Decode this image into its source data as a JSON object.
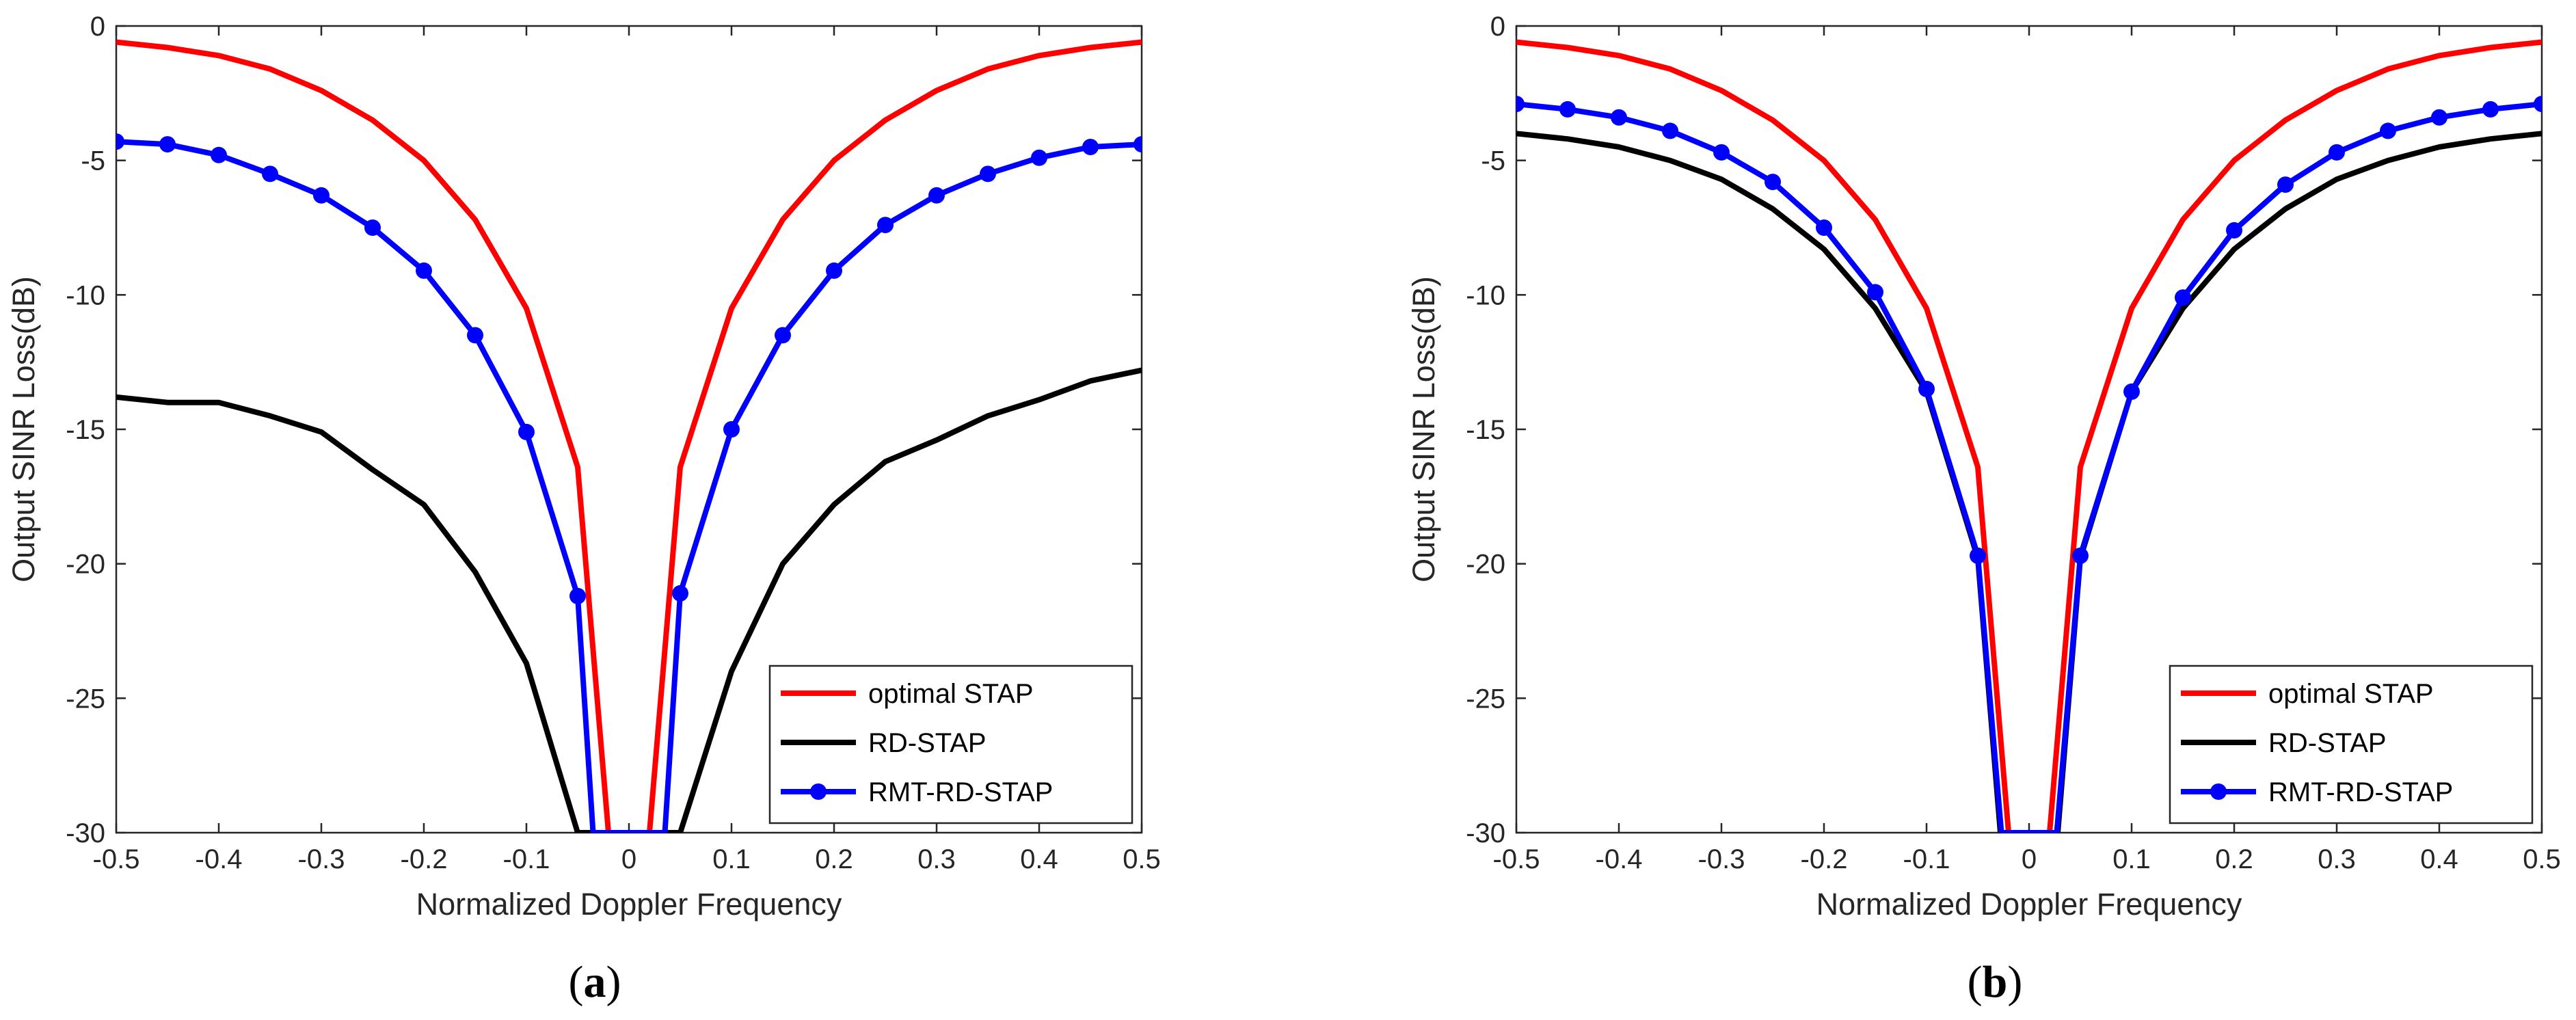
{
  "chart_data": [
    {
      "type": "line",
      "panel_label": "a",
      "xlabel": "Normalized Doppler Frequency",
      "ylabel": "Output SINR Loss(dB)",
      "xlim": [
        -0.5,
        0.5
      ],
      "ylim": [
        -30,
        0
      ],
      "xticks": [
        "-0.5",
        "-0.4",
        "-0.3",
        "-0.2",
        "-0.1",
        "0",
        "0.1",
        "0.2",
        "0.3",
        "0.4",
        "0.5"
      ],
      "yticks": [
        "0",
        "-5",
        "-10",
        "-15",
        "-20",
        "-25",
        "-30"
      ],
      "grid": false,
      "legend_position": "bottom-right",
      "series": [
        {
          "name": "optimal STAP",
          "color": "#ff0000",
          "marker": "none",
          "x": [
            -0.5,
            -0.45,
            -0.4,
            -0.35,
            -0.3,
            -0.25,
            -0.2,
            -0.15,
            -0.1,
            -0.05,
            -0.02,
            0.02,
            0.05,
            0.1,
            0.15,
            0.2,
            0.25,
            0.3,
            0.35,
            0.4,
            0.45,
            0.5
          ],
          "y": [
            -0.6,
            -0.8,
            -1.1,
            -1.6,
            -2.4,
            -3.5,
            -5.0,
            -7.2,
            -10.5,
            -16.4,
            -30.0,
            -30.0,
            -16.4,
            -10.5,
            -7.2,
            -5.0,
            -3.5,
            -2.4,
            -1.6,
            -1.1,
            -0.8,
            -0.6
          ]
        },
        {
          "name": "RD-STAP",
          "color": "#000000",
          "marker": "none",
          "x": [
            -0.5,
            -0.45,
            -0.4,
            -0.35,
            -0.3,
            -0.25,
            -0.2,
            -0.15,
            -0.1,
            -0.05,
            0.05,
            0.1,
            0.15,
            0.2,
            0.25,
            0.3,
            0.35,
            0.4,
            0.45,
            0.5
          ],
          "y": [
            -13.8,
            -14.0,
            -14.0,
            -14.5,
            -15.1,
            -16.5,
            -17.8,
            -20.3,
            -23.7,
            -30.0,
            -30.0,
            -24.0,
            -20.0,
            -17.8,
            -16.2,
            -15.4,
            -14.5,
            -13.9,
            -13.2,
            -12.8
          ]
        },
        {
          "name": "RMT-RD-STAP",
          "color": "#0000ff",
          "marker": "circle",
          "x": [
            -0.5,
            -0.45,
            -0.4,
            -0.35,
            -0.3,
            -0.25,
            -0.2,
            -0.15,
            -0.1,
            -0.05,
            -0.035,
            0.035,
            0.05,
            0.1,
            0.15,
            0.2,
            0.25,
            0.3,
            0.35,
            0.4,
            0.45,
            0.5
          ],
          "y": [
            -4.3,
            -4.4,
            -4.8,
            -5.5,
            -6.3,
            -7.5,
            -9.1,
            -11.5,
            -15.1,
            -21.2,
            -30.0,
            -30.0,
            -21.1,
            -15.0,
            -11.5,
            -9.1,
            -7.4,
            -6.3,
            -5.5,
            -4.9,
            -4.5,
            -4.4
          ],
          "marker_x": [
            -0.5,
            -0.45,
            -0.4,
            -0.35,
            -0.3,
            -0.25,
            -0.2,
            -0.15,
            -0.1,
            -0.05,
            0.05,
            0.1,
            0.15,
            0.2,
            0.25,
            0.3,
            0.35,
            0.4,
            0.45,
            0.5
          ],
          "marker_y": [
            -4.3,
            -4.4,
            -4.8,
            -5.5,
            -6.3,
            -7.5,
            -9.1,
            -11.5,
            -15.1,
            -21.2,
            -21.1,
            -15.0,
            -11.5,
            -9.1,
            -7.4,
            -6.3,
            -5.5,
            -4.9,
            -4.5,
            -4.4
          ]
        }
      ]
    },
    {
      "type": "line",
      "panel_label": "b",
      "xlabel": "Normalized Doppler Frequency",
      "ylabel": "Output SINR Loss(dB)",
      "xlim": [
        -0.5,
        0.5
      ],
      "ylim": [
        -30,
        0
      ],
      "xticks": [
        "-0.5",
        "-0.4",
        "-0.3",
        "-0.2",
        "-0.1",
        "0",
        "0.1",
        "0.2",
        "0.3",
        "0.4",
        "0.5"
      ],
      "yticks": [
        "0",
        "-5",
        "-10",
        "-15",
        "-20",
        "-25",
        "-30"
      ],
      "grid": false,
      "legend_position": "bottom-right",
      "series": [
        {
          "name": "optimal STAP",
          "color": "#ff0000",
          "marker": "none",
          "x": [
            -0.5,
            -0.45,
            -0.4,
            -0.35,
            -0.3,
            -0.25,
            -0.2,
            -0.15,
            -0.1,
            -0.05,
            -0.02,
            0.02,
            0.05,
            0.1,
            0.15,
            0.2,
            0.25,
            0.3,
            0.35,
            0.4,
            0.45,
            0.5
          ],
          "y": [
            -0.6,
            -0.8,
            -1.1,
            -1.6,
            -2.4,
            -3.5,
            -5.0,
            -7.2,
            -10.5,
            -16.4,
            -30.0,
            -30.0,
            -16.4,
            -10.5,
            -7.2,
            -5.0,
            -3.5,
            -2.4,
            -1.6,
            -1.1,
            -0.8,
            -0.6
          ]
        },
        {
          "name": "RD-STAP",
          "color": "#000000",
          "marker": "none",
          "x": [
            -0.5,
            -0.45,
            -0.4,
            -0.35,
            -0.3,
            -0.25,
            -0.2,
            -0.15,
            -0.1,
            -0.05,
            -0.028,
            0.028,
            0.05,
            0.1,
            0.15,
            0.2,
            0.25,
            0.3,
            0.35,
            0.4,
            0.45,
            0.5
          ],
          "y": [
            -4.0,
            -4.2,
            -4.5,
            -5.0,
            -5.7,
            -6.8,
            -8.3,
            -10.5,
            -13.6,
            -19.8,
            -30.0,
            -30.0,
            -19.8,
            -13.6,
            -10.5,
            -8.3,
            -6.8,
            -5.7,
            -5.0,
            -4.5,
            -4.2,
            -4.0
          ]
        },
        {
          "name": "RMT-RD-STAP",
          "color": "#0000ff",
          "marker": "circle",
          "x": [
            -0.5,
            -0.45,
            -0.4,
            -0.35,
            -0.3,
            -0.25,
            -0.2,
            -0.15,
            -0.1,
            -0.05,
            -0.027,
            0.027,
            0.05,
            0.1,
            0.15,
            0.2,
            0.25,
            0.3,
            0.35,
            0.4,
            0.45,
            0.5
          ],
          "y": [
            -2.9,
            -3.1,
            -3.4,
            -3.9,
            -4.7,
            -5.8,
            -7.5,
            -9.9,
            -13.5,
            -19.7,
            -30.0,
            -30.0,
            -19.7,
            -13.6,
            -10.1,
            -7.6,
            -5.9,
            -4.7,
            -3.9,
            -3.4,
            -3.1,
            -2.9
          ],
          "marker_x": [
            -0.5,
            -0.45,
            -0.4,
            -0.35,
            -0.3,
            -0.25,
            -0.2,
            -0.15,
            -0.1,
            -0.05,
            0.05,
            0.1,
            0.15,
            0.2,
            0.25,
            0.3,
            0.35,
            0.4,
            0.45,
            0.5
          ],
          "marker_y": [
            -2.9,
            -3.1,
            -3.4,
            -3.9,
            -4.7,
            -5.8,
            -7.5,
            -9.9,
            -13.5,
            -19.7,
            -19.7,
            -13.6,
            -10.1,
            -7.6,
            -5.9,
            -4.7,
            -3.9,
            -3.4,
            -3.1,
            -2.9
          ]
        }
      ]
    }
  ]
}
